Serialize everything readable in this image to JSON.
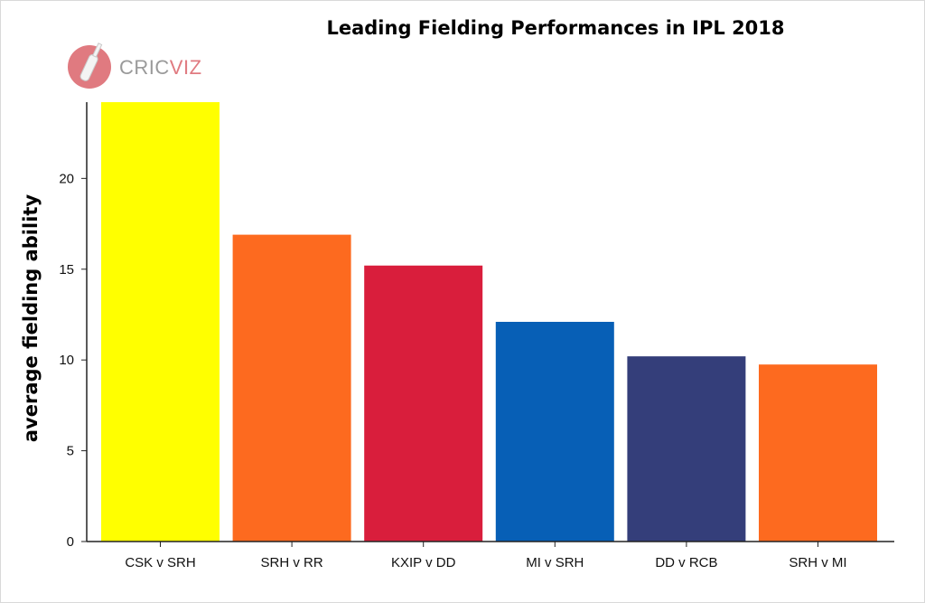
{
  "logo": {
    "brand_text_a": "CRIC",
    "brand_text_b": "VIZ",
    "color": "#e07a80"
  },
  "chart_data": {
    "type": "bar",
    "title": "Leading Fielding Performances in IPL 2018",
    "xlabel": "",
    "ylabel": "average fielding ability",
    "categories": [
      "CSK v SRH",
      "SRH v RR",
      "KXIP v DD",
      "MI v SRH",
      "DD v RCB",
      "SRH v MI"
    ],
    "values": [
      24.2,
      16.9,
      15.2,
      12.1,
      10.2,
      9.75
    ],
    "colors": [
      "#ffff00",
      "#fd6a1f",
      "#d91e3c",
      "#075fb6",
      "#343e7a",
      "#fd6a1f"
    ],
    "yticks": [
      0,
      5,
      10,
      15,
      20
    ],
    "ylim": [
      0,
      24.2
    ],
    "grid": false,
    "legend": "none"
  }
}
